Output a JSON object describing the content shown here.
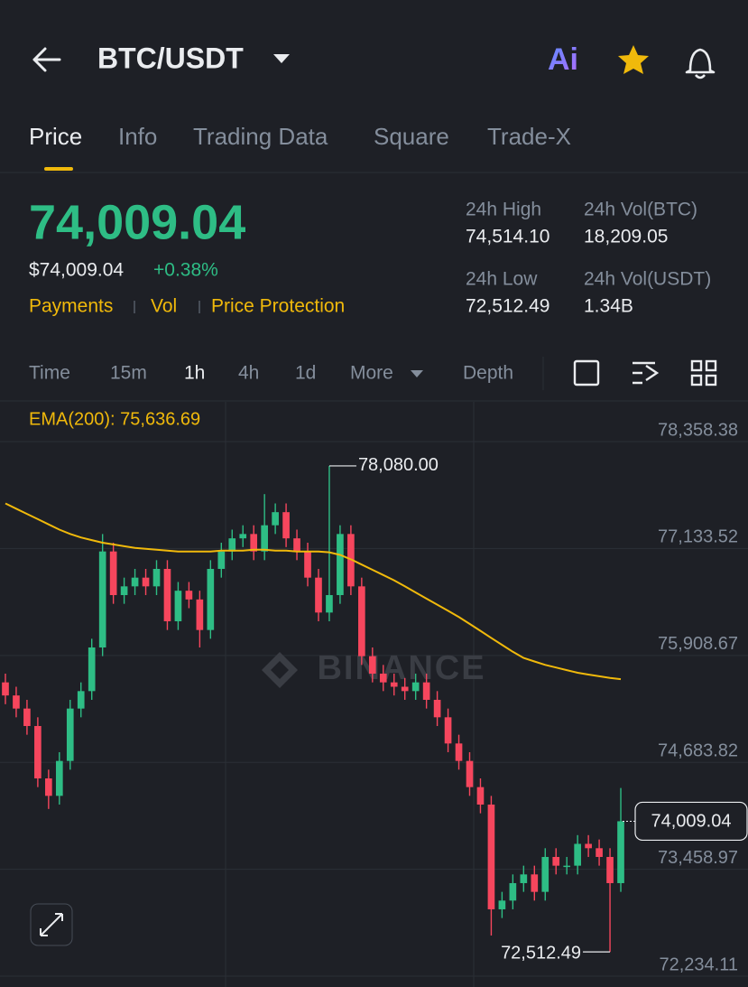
{
  "header": {
    "title": "BTC/USDT",
    "ai": "Ai"
  },
  "tabs": [
    "Price",
    "Info",
    "Trading Data",
    "Square",
    "Trade-X"
  ],
  "ticker": {
    "price": "74,009.04",
    "price_usd": "$74,009.04",
    "change": "+0.38%",
    "tags": [
      "Payments",
      "Vol",
      "Price Protection"
    ],
    "stats": [
      {
        "label": "24h High",
        "value": "74,514.10"
      },
      {
        "label": "24h Vol(BTC)",
        "value": "18,209.05"
      },
      {
        "label": "24h Low",
        "value": "72,512.49"
      },
      {
        "label": "24h Vol(USDT)",
        "value": "1.34B"
      }
    ]
  },
  "intervals": [
    "Time",
    "15m",
    "1h",
    "4h",
    "1d",
    "More",
    "Depth"
  ],
  "chart_data": {
    "type": "candlestick",
    "watermark": "BINANCE",
    "up_color": "#2ebd85",
    "down_color": "#f6465d",
    "grid": true,
    "ylim": [
      72110,
      78814
    ],
    "yticks": [
      {
        "value": 78358.38,
        "label": "78,358.38"
      },
      {
        "value": 77133.52,
        "label": "77,133.52"
      },
      {
        "value": 75908.67,
        "label": "75,908.67"
      },
      {
        "value": 74683.82,
        "label": "74,683.82"
      },
      {
        "value": 73458.97,
        "label": "73,458.97"
      },
      {
        "value": 72234.11,
        "label": "72,234.11"
      }
    ],
    "open": [
      75600,
      75450,
      75300,
      75100,
      74500,
      74300,
      74700,
      75300,
      75500,
      76000,
      77100,
      76600,
      76700,
      76800,
      76700,
      76900,
      76300,
      76650,
      76550,
      76200,
      76900,
      77100,
      77250,
      77300,
      77100,
      77400,
      77550,
      77250,
      77100,
      76800,
      76400,
      76600,
      77300,
      76700,
      75900,
      75700,
      75600,
      75550,
      75500,
      75600,
      75400,
      75200,
      74900,
      74700,
      74400,
      74200,
      73000,
      73100,
      73300,
      73400,
      73200,
      73600,
      73500,
      73500,
      73750,
      73700,
      73600,
      73300
    ],
    "high": [
      75700,
      75550,
      75400,
      75200,
      74600,
      74800,
      75400,
      75600,
      76100,
      77300,
      77200,
      76800,
      76900,
      76900,
      77000,
      77000,
      76750,
      76750,
      76650,
      77000,
      77200,
      77350,
      77400,
      77400,
      77757,
      77650,
      77650,
      77350,
      77200,
      76900,
      78080,
      77400,
      77400,
      76800,
      76000,
      75800,
      75700,
      75650,
      75700,
      75700,
      75500,
      75300,
      75000,
      74800,
      74500,
      74300,
      73200,
      73400,
      73500,
      73500,
      73700,
      73700,
      73600,
      73850,
      73850,
      73800,
      73700,
      74390
    ],
    "low": [
      75350,
      75200,
      75000,
      74400,
      74150,
      74200,
      74600,
      75200,
      75400,
      75900,
      76500,
      76500,
      76600,
      76600,
      76600,
      76200,
      76200,
      76450,
      76000,
      76100,
      76800,
      77000,
      77150,
      77000,
      77000,
      77300,
      77150,
      77000,
      76700,
      76300,
      76300,
      76500,
      76600,
      75800,
      75600,
      75500,
      75450,
      75400,
      75400,
      75300,
      75100,
      74800,
      74600,
      74300,
      74100,
      72700,
      72900,
      73000,
      73200,
      73100,
      73100,
      73400,
      73400,
      73400,
      73600,
      73500,
      72512.49,
      73200
    ],
    "close": [
      75450,
      75300,
      75100,
      74500,
      74300,
      74700,
      75300,
      75500,
      76000,
      77100,
      76600,
      76700,
      76800,
      76700,
      76900,
      76300,
      76650,
      76550,
      76200,
      76900,
      77100,
      77250,
      77300,
      77100,
      77400,
      77550,
      77250,
      77100,
      76800,
      76400,
      76600,
      77300,
      76700,
      75900,
      75700,
      75600,
      75550,
      75500,
      75600,
      75400,
      75200,
      74900,
      74700,
      74400,
      74200,
      73000,
      73100,
      73300,
      73400,
      73200,
      73600,
      73500,
      73500,
      73750,
      73700,
      73600,
      73300,
      74009.04
    ],
    "ema": {
      "label": "EMA(200): 75,636.69",
      "color": "#f0b90b",
      "values": [
        77650,
        77590,
        77530,
        77470,
        77410,
        77350,
        77300,
        77260,
        77230,
        77200,
        77180,
        77160,
        77140,
        77130,
        77120,
        77110,
        77100,
        77100,
        77100,
        77100,
        77110,
        77110,
        77110,
        77120,
        77120,
        77110,
        77110,
        77100,
        77100,
        77100,
        77090,
        77060,
        77010,
        76950,
        76890,
        76830,
        76770,
        76700,
        76630,
        76560,
        76490,
        76420,
        76350,
        76270,
        76190,
        76110,
        76030,
        75950,
        75880,
        75840,
        75800,
        75770,
        75740,
        75710,
        75690,
        75670,
        75650,
        75636.69
      ]
    },
    "max_label": {
      "value": 78080,
      "label": "78,080.00"
    },
    "min_label": {
      "value": 72512.49,
      "label": "72,512.49"
    },
    "last_label": {
      "value": 74009.04,
      "label": "74,009.04"
    }
  }
}
